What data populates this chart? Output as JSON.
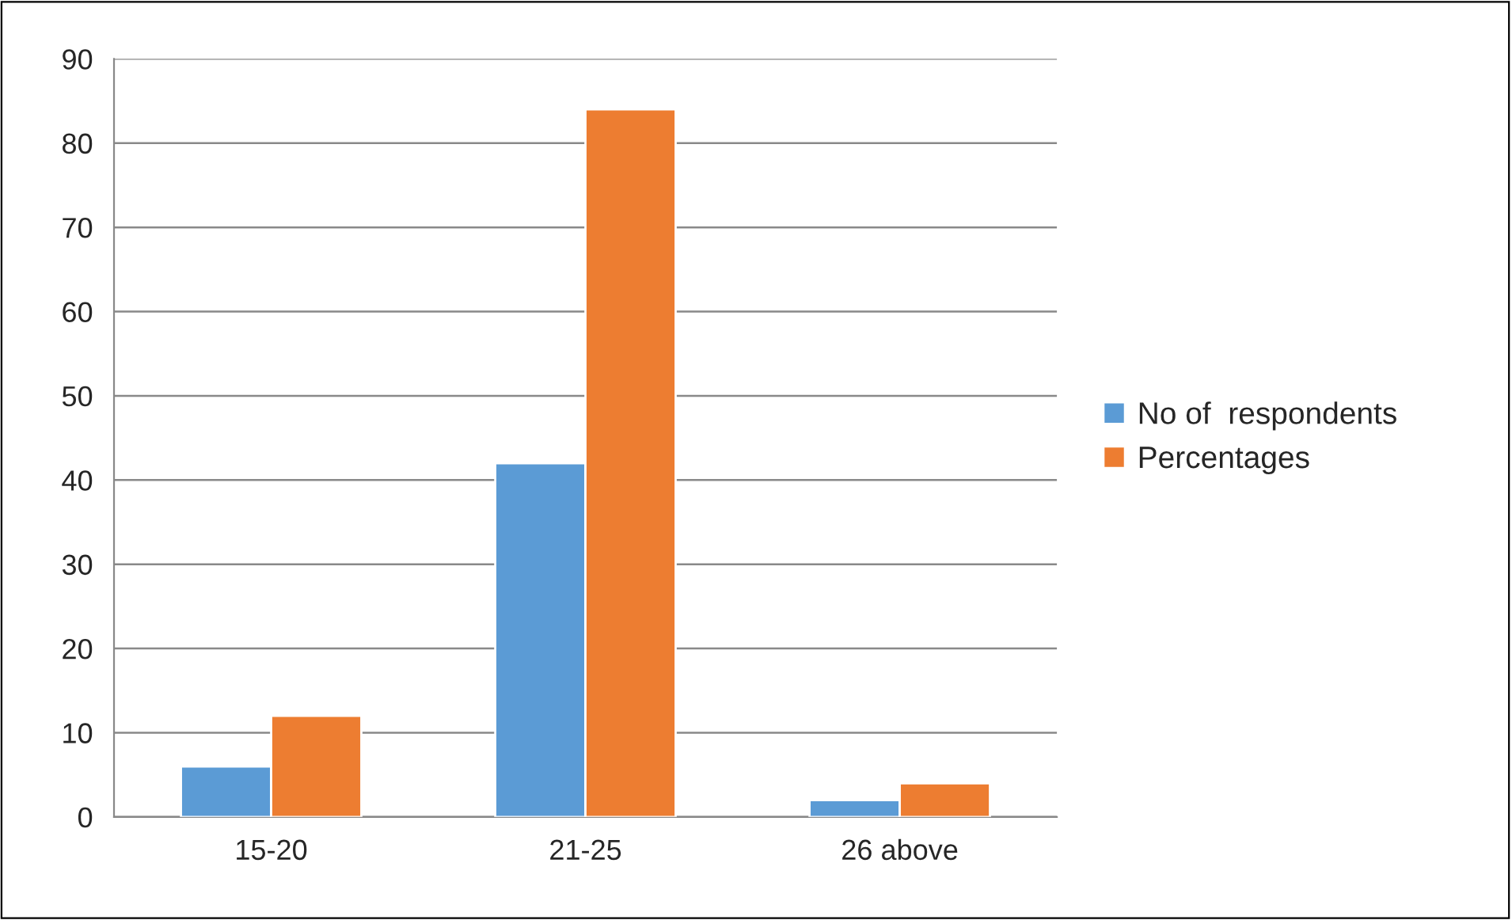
{
  "chart_data": {
    "type": "bar",
    "categories": [
      "15-20",
      "21-25",
      "26 above"
    ],
    "series": [
      {
        "name": "No of  respondents",
        "color": "#5b9bd5",
        "values": [
          6,
          42,
          2
        ]
      },
      {
        "name": "Percentages",
        "color": "#ed7d31",
        "values": [
          12,
          84,
          4
        ]
      }
    ],
    "ylim": [
      0,
      90
    ],
    "yticks": [
      0,
      10,
      20,
      30,
      40,
      50,
      60,
      70,
      80,
      90
    ],
    "grid": "y",
    "legend": "right"
  }
}
